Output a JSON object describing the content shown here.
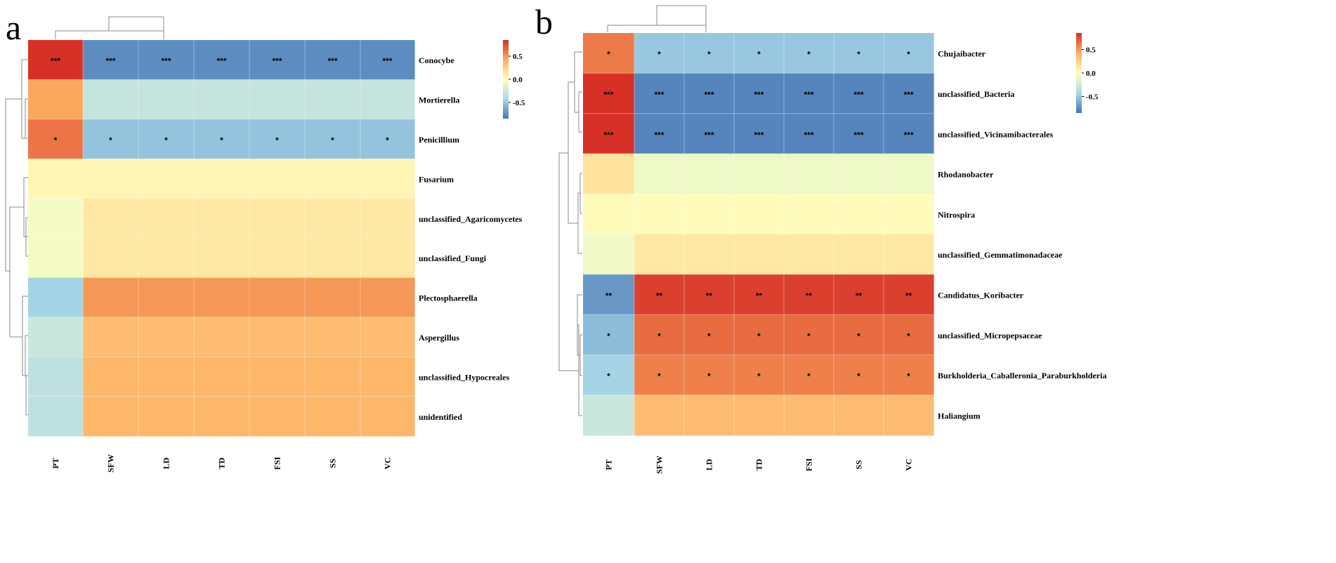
{
  "chart_data": [
    {
      "type": "heatmap",
      "panel_label": "a",
      "columns": [
        "PT",
        "SFW",
        "LD",
        "TD",
        "FSI",
        "SS",
        "VC"
      ],
      "rows": [
        "Conocybe",
        "Mortierella",
        "Penicillium",
        "Fusarium",
        "unclassified_Agaricomycetes",
        "unclassified_Fungi",
        "Plectosphaerella",
        "Aspergillus",
        "unclassified_Hypocreales",
        "unidentified"
      ],
      "values": [
        [
          0.85,
          -0.75,
          -0.75,
          -0.75,
          -0.75,
          -0.75,
          -0.75
        ],
        [
          0.45,
          -0.3,
          -0.3,
          -0.3,
          -0.3,
          -0.3,
          -0.3
        ],
        [
          0.62,
          -0.52,
          -0.52,
          -0.52,
          -0.52,
          -0.52,
          -0.52
        ],
        [
          0.05,
          0.05,
          0.05,
          0.05,
          0.05,
          0.05,
          0.05
        ],
        [
          -0.05,
          0.12,
          0.12,
          0.12,
          0.12,
          0.12,
          0.12
        ],
        [
          -0.05,
          0.12,
          0.12,
          0.12,
          0.12,
          0.12,
          0.12
        ],
        [
          -0.45,
          0.5,
          0.5,
          0.5,
          0.5,
          0.5,
          0.5
        ],
        [
          -0.28,
          0.35,
          0.35,
          0.35,
          0.35,
          0.35,
          0.35
        ],
        [
          -0.33,
          0.38,
          0.38,
          0.38,
          0.38,
          0.38,
          0.38
        ],
        [
          -0.33,
          0.38,
          0.38,
          0.38,
          0.38,
          0.38,
          0.38
        ]
      ],
      "significance": [
        [
          "***",
          "***",
          "***",
          "***",
          "***",
          "***",
          "***"
        ],
        [
          "",
          "",
          "",
          "",
          "",
          "",
          ""
        ],
        [
          "*",
          "*",
          "*",
          "*",
          "*",
          "*",
          "*"
        ],
        [
          "",
          "",
          "",
          "",
          "",
          "",
          ""
        ],
        [
          "",
          "",
          "",
          "",
          "",
          "",
          ""
        ],
        [
          "",
          "",
          "",
          "",
          "",
          "",
          ""
        ],
        [
          "",
          "",
          "",
          "",
          "",
          "",
          ""
        ],
        [
          "",
          "",
          "",
          "",
          "",
          "",
          ""
        ],
        [
          "",
          "",
          "",
          "",
          "",
          "",
          ""
        ],
        [
          "",
          "",
          "",
          "",
          "",
          "",
          ""
        ]
      ],
      "color_scale": {
        "min": -0.85,
        "max": 0.85,
        "ticks": [
          0.5,
          0.0,
          -0.5
        ],
        "tick_labels": [
          "0.5",
          "0.0",
          "-0.5"
        ],
        "low_color": "#4575b4",
        "mid_color": "#ffffbf",
        "high_color": "#d73027"
      }
    },
    {
      "type": "heatmap",
      "panel_label": "b",
      "columns": [
        "PT",
        "SFW",
        "LD",
        "TD",
        "FSI",
        "SS",
        "VC"
      ],
      "rows": [
        "Chujaibacter",
        "unclassified_Bacteria",
        "unclassified_Vicinamibacterales",
        "Rhodanobacter",
        "Nitrospira",
        "unclassified_Gemmatimonadaceae",
        "Candidatus_Koribacter",
        "unclassified_Micropepsaceae",
        "Burkholderia_Caballeronia_Paraburkholderia",
        "Haliangium"
      ],
      "values": [
        [
          0.6,
          -0.5,
          -0.5,
          -0.5,
          -0.5,
          -0.5,
          -0.5
        ],
        [
          0.88,
          -0.78,
          -0.78,
          -0.78,
          -0.78,
          -0.78,
          -0.78
        ],
        [
          0.88,
          -0.78,
          -0.78,
          -0.78,
          -0.78,
          -0.78,
          -0.78
        ],
        [
          0.15,
          -0.08,
          -0.08,
          -0.08,
          -0.08,
          -0.08,
          -0.08
        ],
        [
          0.02,
          0.02,
          0.02,
          0.02,
          0.02,
          0.02,
          0.02
        ],
        [
          -0.07,
          0.12,
          0.12,
          0.12,
          0.12,
          0.12,
          0.12
        ],
        [
          -0.7,
          0.8,
          0.8,
          0.8,
          0.8,
          0.8,
          0.8
        ],
        [
          -0.55,
          0.65,
          0.65,
          0.65,
          0.65,
          0.65,
          0.65
        ],
        [
          -0.45,
          0.58,
          0.58,
          0.58,
          0.58,
          0.58,
          0.58
        ],
        [
          -0.28,
          0.35,
          0.35,
          0.35,
          0.35,
          0.35,
          0.35
        ]
      ],
      "significance": [
        [
          "*",
          "*",
          "*",
          "*",
          "*",
          "*",
          "*"
        ],
        [
          "***",
          "***",
          "***",
          "***",
          "***",
          "***",
          "***"
        ],
        [
          "***",
          "***",
          "***",
          "***",
          "***",
          "***",
          "***"
        ],
        [
          "",
          "",
          "",
          "",
          "",
          "",
          ""
        ],
        [
          "",
          "",
          "",
          "",
          "",
          "",
          ""
        ],
        [
          "",
          "",
          "",
          "",
          "",
          "",
          ""
        ],
        [
          "**",
          "**",
          "**",
          "**",
          "**",
          "**",
          "**"
        ],
        [
          "*",
          "*",
          "*",
          "*",
          "*",
          "*",
          "*"
        ],
        [
          "*",
          "*",
          "*",
          "*",
          "*",
          "*",
          "*"
        ],
        [
          "",
          "",
          "",
          "",
          "",
          "",
          ""
        ]
      ],
      "color_scale": {
        "min": -0.85,
        "max": 0.85,
        "ticks": [
          0.5,
          0.0,
          -0.5
        ],
        "tick_labels": [
          "0.5",
          "0.0",
          "-0.5"
        ],
        "low_color": "#4575b4",
        "mid_color": "#ffffbf",
        "high_color": "#d73027"
      }
    }
  ]
}
